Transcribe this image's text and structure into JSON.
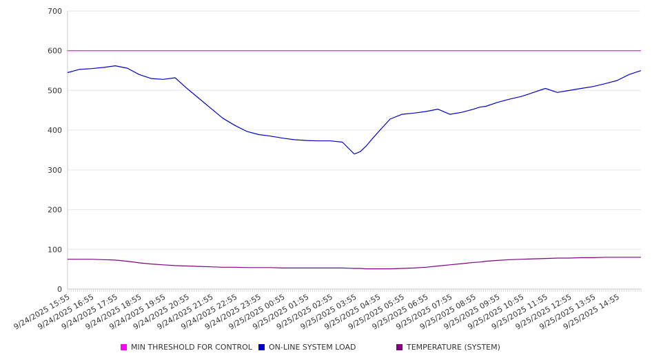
{
  "chart_data": {
    "type": "line",
    "ylim": [
      0,
      700
    ],
    "yticks": [
      0,
      100,
      200,
      300,
      400,
      500,
      600,
      700
    ],
    "grid": true,
    "legend_position": "bottom",
    "x_tick_labels": [
      "9/24/2025 15:55",
      "9/24/2025 16:55",
      "9/24/2025 17:55",
      "9/24/2025 18:55",
      "9/24/2025 19:55",
      "9/24/2025 20:55",
      "9/24/2025 21:55",
      "9/24/2025 22:55",
      "9/24/2025 23:55",
      "9/25/2025 00:55",
      "9/25/2025 01:55",
      "9/25/2025 02:55",
      "9/25/2025 03:55",
      "9/25/2025 04:55",
      "9/25/2025 05:55",
      "9/25/2025 06:55",
      "9/25/2025 07:55",
      "9/25/2025 08:55",
      "9/25/2025 09:55",
      "9/25/2025 10:55",
      "9/25/2025 11:55",
      "9/25/2025 12:55",
      "9/25/2025 13:55",
      "9/25/2025 14:55"
    ],
    "x_hours": [
      0,
      0.5,
      1,
      1.5,
      2,
      2.5,
      3,
      3.5,
      4,
      4.5,
      5,
      5.5,
      6,
      6.5,
      7,
      7.5,
      8,
      8.5,
      9,
      9.5,
      10,
      10.5,
      11,
      11.5,
      12,
      12.25,
      12.5,
      12.75,
      13,
      13.5,
      14,
      14.5,
      15,
      15.5,
      16,
      16.5,
      17,
      17.25,
      17.5,
      18,
      18.5,
      19,
      19.5,
      20,
      20.5,
      21,
      21.5,
      22,
      22.5,
      23,
      23.5,
      24
    ],
    "x_hour_end": 24,
    "series": [
      {
        "name": "MIN THRESHOLD FOR CONTROL",
        "color": "#ff00ff",
        "values": [
          600,
          600,
          600,
          600,
          600,
          600,
          600,
          600,
          600,
          600,
          600,
          600,
          600,
          600,
          600,
          600,
          600,
          600,
          600,
          600,
          600,
          600,
          600,
          600,
          600,
          600,
          600,
          600,
          600,
          600,
          600,
          600,
          600,
          600,
          600,
          600,
          600,
          600,
          600,
          600,
          600,
          600,
          600,
          600,
          600,
          600,
          600,
          600,
          600,
          600,
          600,
          600
        ]
      },
      {
        "name": "ON-LINE SYSTEM LOAD",
        "color": "#0000cc",
        "values": [
          545,
          553,
          555,
          558,
          562,
          556,
          540,
          530,
          528,
          532,
          505,
          480,
          455,
          430,
          412,
          397,
          389,
          385,
          380,
          376,
          374,
          373,
          373,
          370,
          340,
          346,
          360,
          378,
          395,
          428,
          440,
          443,
          447,
          453,
          440,
          445,
          453,
          458,
          460,
          470,
          478,
          485,
          495,
          505,
          495,
          500,
          505,
          510,
          517,
          525,
          540,
          550
        ]
      },
      {
        "name": "TEMPERATURE (SYSTEM)",
        "color": "#800080",
        "values": [
          75,
          75,
          75,
          74,
          73,
          70,
          66,
          63,
          61,
          59,
          58,
          57,
          56,
          55,
          55,
          54,
          54,
          54,
          53,
          53,
          53,
          53,
          53,
          53,
          52,
          52,
          51,
          51,
          51,
          51,
          52,
          53,
          55,
          58,
          61,
          64,
          67,
          68,
          70,
          72,
          74,
          75,
          76,
          77,
          78,
          78,
          79,
          79,
          80,
          80,
          80,
          80
        ]
      }
    ]
  }
}
